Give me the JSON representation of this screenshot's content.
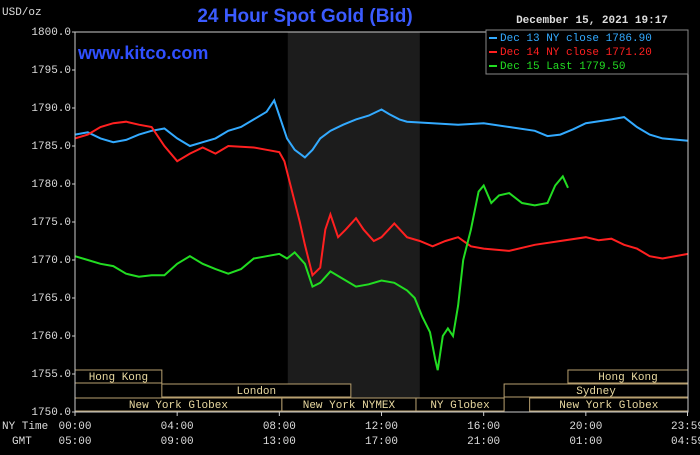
{
  "chart_data": {
    "type": "line",
    "title": "24 Hour Spot Gold (Bid)",
    "y_unit": "USD/oz",
    "timestamp": "December 15, 2021 19:17",
    "watermark": "www.kitco.com",
    "x_axis_row_labels": [
      "NY Time",
      "GMT"
    ],
    "xlim": [
      0,
      24
    ],
    "xticks": [
      {
        "value": 0,
        "label": "00:00"
      },
      {
        "value": 4,
        "label": "04:00"
      },
      {
        "value": 8,
        "label": "08:00"
      },
      {
        "value": 12,
        "label": "12:00"
      },
      {
        "value": 16,
        "label": "16:00"
      },
      {
        "value": 20,
        "label": "20:00"
      },
      {
        "value": 23.98,
        "label": "23:59"
      }
    ],
    "gmt_tick_labels": [
      "05:00",
      "09:00",
      "13:00",
      "17:00",
      "21:00",
      "01:00",
      "04:59"
    ],
    "ylim": [
      1750,
      1800
    ],
    "yticks": [
      {
        "value": 1750,
        "label": "1750.0"
      },
      {
        "value": 1755,
        "label": "1755.0"
      },
      {
        "value": 1760,
        "label": "1760.0"
      },
      {
        "value": 1765,
        "label": "1765.0"
      },
      {
        "value": 1770,
        "label": "1770.0"
      },
      {
        "value": 1775,
        "label": "1775.0"
      },
      {
        "value": 1780,
        "label": "1780.0"
      },
      {
        "value": 1785,
        "label": "1785.0"
      },
      {
        "value": 1790,
        "label": "1790.0"
      },
      {
        "value": 1795,
        "label": "1795.0"
      },
      {
        "value": 1800,
        "label": "1800.0"
      }
    ],
    "grid": false,
    "legend": "top-right",
    "shaded_range": [
      8.33,
      13.5
    ],
    "series": [
      {
        "name": "Dec 13 NY close 1786.90",
        "color": "#33aaff",
        "x": [
          0,
          0.5,
          1,
          1.5,
          2,
          2.5,
          3,
          3.5,
          4,
          4.5,
          5,
          5.5,
          6,
          6.5,
          7,
          7.5,
          7.8,
          8,
          8.3,
          8.6,
          9,
          9.3,
          9.6,
          10,
          10.5,
          11,
          11.5,
          12,
          12.3,
          12.7,
          13,
          14,
          15,
          16,
          17,
          18,
          18.5,
          19,
          19.5,
          20,
          21,
          21.5,
          22,
          22.5,
          23,
          24
        ],
        "values": [
          1786.5,
          1786.8,
          1786,
          1785.5,
          1785.8,
          1786.5,
          1787,
          1787.3,
          1786,
          1785,
          1785.5,
          1786,
          1787,
          1787.5,
          1788.5,
          1789.5,
          1791,
          1789,
          1786,
          1784.5,
          1783.5,
          1784.5,
          1786,
          1787,
          1787.8,
          1788.5,
          1789,
          1789.8,
          1789.2,
          1788.5,
          1788.2,
          1788,
          1787.8,
          1788,
          1787.5,
          1787,
          1786.3,
          1786.5,
          1787.2,
          1788,
          1788.5,
          1788.8,
          1787.5,
          1786.5,
          1786,
          1785.7
        ]
      },
      {
        "name": "Dec 14 NY close 1771.20",
        "color": "#ff2020",
        "x": [
          0,
          0.5,
          1,
          1.5,
          2,
          2.5,
          3,
          3.5,
          4,
          4.5,
          5,
          5.5,
          6,
          7,
          7.5,
          8,
          8.2,
          8.5,
          8.8,
          9,
          9.3,
          9.6,
          9.8,
          10,
          10.3,
          10.6,
          11,
          11.3,
          11.7,
          12,
          12.5,
          13,
          13.5,
          14,
          14.5,
          15,
          15.5,
          16,
          17,
          18,
          19,
          20,
          20.5,
          21,
          21.5,
          22,
          22.5,
          23,
          24
        ],
        "values": [
          1786,
          1786.5,
          1787.5,
          1788,
          1788.2,
          1787.8,
          1787.5,
          1785,
          1783,
          1784,
          1784.8,
          1784,
          1785,
          1784.8,
          1784.5,
          1784.2,
          1783,
          1779,
          1775,
          1772,
          1768,
          1769,
          1774,
          1776,
          1773,
          1774,
          1775.5,
          1774,
          1772.5,
          1773,
          1774.8,
          1773,
          1772.5,
          1771.8,
          1772.5,
          1773,
          1771.8,
          1771.5,
          1771.2,
          1772,
          1772.5,
          1773,
          1772.6,
          1772.8,
          1772,
          1771.5,
          1770.5,
          1770.2,
          1770.8
        ]
      },
      {
        "name": "Dec 15 Last 1779.50",
        "color": "#22dd22",
        "x": [
          0,
          0.5,
          1,
          1.5,
          2,
          2.5,
          3,
          3.5,
          4,
          4.5,
          5,
          5.5,
          6,
          6.5,
          7,
          7.5,
          8,
          8.3,
          8.6,
          9,
          9.3,
          9.6,
          10,
          10.5,
          11,
          11.5,
          12,
          12.5,
          13,
          13.3,
          13.6,
          13.9,
          14.1,
          14.2,
          14.4,
          14.6,
          14.8,
          15,
          15.2,
          15.5,
          15.8,
          16,
          16.3,
          16.6,
          17,
          17.5,
          18,
          18.5,
          18.8,
          19.1,
          19.3
        ],
        "values": [
          1770.5,
          1770,
          1769.5,
          1769.2,
          1768.2,
          1767.8,
          1768,
          1768,
          1769.5,
          1770.5,
          1769.5,
          1768.8,
          1768.2,
          1768.8,
          1770.2,
          1770.5,
          1770.8,
          1770.2,
          1771,
          1769.5,
          1766.5,
          1767,
          1768.5,
          1767.5,
          1766.5,
          1766.8,
          1767.3,
          1767,
          1766,
          1765,
          1762.5,
          1760.5,
          1757,
          1755.5,
          1760,
          1761,
          1760,
          1764,
          1770,
          1774,
          1779,
          1779.8,
          1777.5,
          1778.5,
          1778.8,
          1777.5,
          1777.2,
          1777.5,
          1779.8,
          1781,
          1779.5
        ]
      }
    ],
    "sessions": [
      {
        "label": "Hong Kong",
        "row": 0,
        "start": 0,
        "end": 3.4
      },
      {
        "label": "Hong Kong",
        "row": 0,
        "start": 19.3,
        "end": 24
      },
      {
        "label": "London",
        "row": 1,
        "start": 3.4,
        "end": 10.8
      },
      {
        "label": "Sydney",
        "row": 1,
        "start": 16.8,
        "end": 24
      },
      {
        "label": "New York Globex",
        "row": 2,
        "start": 0,
        "end": 8.1
      },
      {
        "label": "New York NYMEX",
        "row": 2,
        "start": 8.1,
        "end": 13.35
      },
      {
        "label": "NY Globex",
        "row": 2,
        "start": 13.35,
        "end": 16.8
      },
      {
        "label": "New York Globex",
        "row": 2,
        "start": 17.8,
        "end": 24
      }
    ]
  }
}
